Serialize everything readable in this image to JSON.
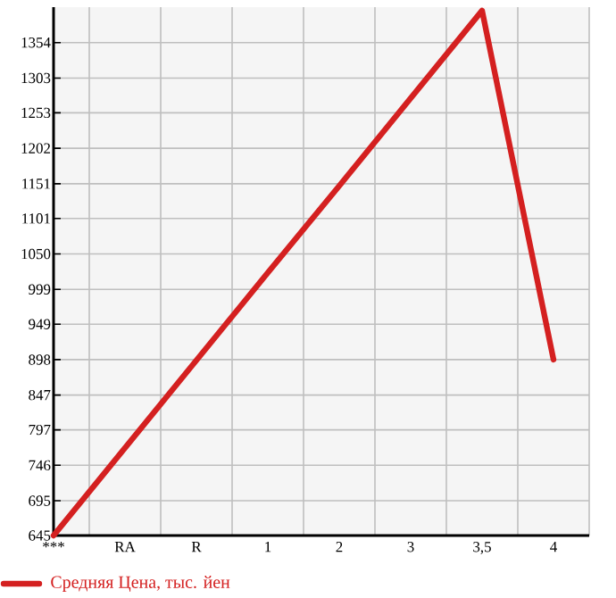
{
  "chart_data": {
    "type": "line",
    "categories": [
      "***",
      "RA",
      "R",
      "1",
      "2",
      "3",
      "3,5",
      "4"
    ],
    "series": [
      {
        "name": "Средняя Цена, тыс. йен",
        "color": "#d42020",
        "values": [
          645,
          771,
          897,
          1023,
          1148,
          1274,
          1400,
          898
        ]
      }
    ],
    "ylim": [
      645,
      1405
    ],
    "yticks": [
      645,
      695,
      746,
      797,
      847,
      898,
      949,
      999,
      1050,
      1101,
      1151,
      1202,
      1253,
      1303,
      1354
    ],
    "grid": true,
    "legend": "bottom",
    "marker": "none",
    "line_style": "solid"
  }
}
